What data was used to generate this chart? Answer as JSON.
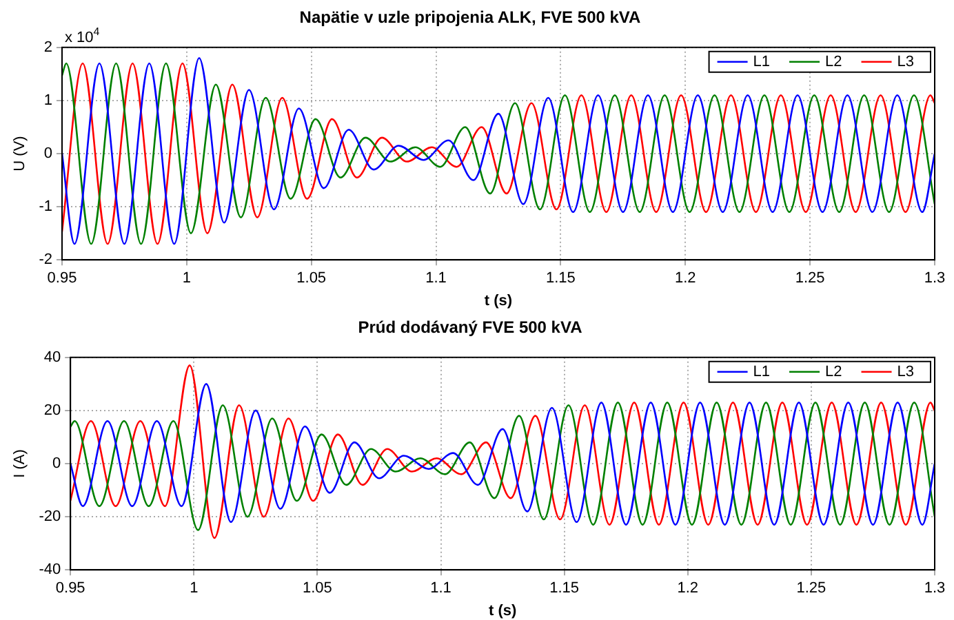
{
  "chart_data": [
    {
      "type": "line",
      "title": "Napätie v uzle pripojenia ALK, FVE 500 kVA",
      "xlabel": "t (s)",
      "ylabel": "U (V)",
      "annotations": [
        "x 10$^{4}$"
      ],
      "xlim": [
        0.95,
        1.3
      ],
      "xticks": [
        0.95,
        1,
        1.05,
        1.1,
        1.15,
        1.2,
        1.25,
        1.3
      ],
      "ylim": [
        -2,
        2
      ],
      "yticks": [
        -2,
        -1,
        0,
        1,
        2
      ],
      "grid": true,
      "legend": "top right",
      "marker": "none",
      "line_style": "solid",
      "series": [
        {
          "name": "L1",
          "color": "#0000ff",
          "x": [
            0.95,
            0.955,
            0.965,
            0.975,
            0.985,
            0.995,
            1.005,
            1.015,
            1.025,
            1.035,
            1.045,
            1.055,
            1.065,
            1.075,
            1.085,
            1.095,
            1.105,
            1.115,
            1.125,
            1.135,
            1.145,
            1.155,
            1.165,
            1.175,
            1.185,
            1.195,
            1.205,
            1.215,
            1.225,
            1.235,
            1.245,
            1.255,
            1.265,
            1.275,
            1.285,
            1.295,
            1.3
          ],
          "values": [
            0,
            -1.7,
            1.7,
            -1.7,
            1.7,
            -1.7,
            1.8,
            -1.3,
            1.2,
            -1.05,
            0.85,
            -0.65,
            0.45,
            -0.3,
            0.15,
            -0.12,
            0.25,
            -0.5,
            0.75,
            -0.95,
            1.05,
            -1.1,
            1.1,
            -1.1,
            1.1,
            -1.1,
            1.1,
            -1.1,
            1.1,
            -1.1,
            1.1,
            -1.1,
            1.1,
            -1.1,
            1.1,
            -1.1,
            0
          ]
        },
        {
          "name": "L2",
          "color": "#008000",
          "x": [
            0.95,
            0.9517,
            0.9617,
            0.9717,
            0.9817,
            0.9917,
            1.0017,
            1.0117,
            1.0217,
            1.0317,
            1.0417,
            1.0517,
            1.0617,
            1.0717,
            1.0817,
            1.0917,
            1.1017,
            1.1117,
            1.1217,
            1.1317,
            1.1417,
            1.1517,
            1.1617,
            1.1717,
            1.1817,
            1.1917,
            1.2017,
            1.2117,
            1.2217,
            1.2317,
            1.2417,
            1.2517,
            1.2617,
            1.2717,
            1.2817,
            1.2917,
            1.3
          ],
          "values": [
            1.47,
            1.7,
            -1.7,
            1.7,
            -1.7,
            1.7,
            -1.5,
            1.3,
            -1.2,
            1.05,
            -0.85,
            0.65,
            -0.45,
            0.3,
            -0.15,
            0.12,
            -0.25,
            0.5,
            -0.75,
            0.95,
            -1.05,
            1.1,
            -1.1,
            1.1,
            -1.1,
            1.1,
            -1.1,
            1.1,
            -1.1,
            1.1,
            -1.1,
            1.1,
            -1.1,
            1.1,
            -1.1,
            1.1,
            -0.95
          ]
        },
        {
          "name": "L3",
          "color": "#ff0000",
          "x": [
            0.95,
            0.9583,
            0.9683,
            0.9783,
            0.9883,
            0.9983,
            1.0083,
            1.0183,
            1.0283,
            1.0383,
            1.0483,
            1.0583,
            1.0683,
            1.0783,
            1.0883,
            1.0983,
            1.1083,
            1.1183,
            1.1283,
            1.1383,
            1.1483,
            1.1583,
            1.1683,
            1.1783,
            1.1883,
            1.1983,
            1.2083,
            1.2183,
            1.2283,
            1.2383,
            1.2483,
            1.2583,
            1.2683,
            1.2783,
            1.2883,
            1.2983,
            1.3
          ],
          "values": [
            -1.47,
            1.7,
            -1.7,
            1.7,
            -1.7,
            1.7,
            -1.5,
            1.3,
            -1.2,
            1.05,
            -0.85,
            0.65,
            -0.45,
            0.3,
            -0.15,
            0.12,
            -0.25,
            0.5,
            -0.75,
            0.95,
            -1.05,
            1.1,
            -1.1,
            1.1,
            -1.1,
            1.1,
            -1.1,
            1.1,
            -1.1,
            1.1,
            -1.1,
            1.1,
            -1.1,
            1.1,
            -1.1,
            1.1,
            0.95
          ]
        }
      ]
    },
    {
      "type": "line",
      "title": "Prúd dodávaný FVE 500 kVA",
      "xlabel": "t (s)",
      "ylabel": "I (A)",
      "xlim": [
        0.95,
        1.3
      ],
      "xticks": [
        0.95,
        1,
        1.05,
        1.1,
        1.15,
        1.2,
        1.25,
        1.3
      ],
      "ylim": [
        -40,
        40
      ],
      "yticks": [
        -40,
        -20,
        0,
        20,
        40
      ],
      "grid": true,
      "legend": "top right",
      "marker": "none",
      "line_style": "solid",
      "series": [
        {
          "name": "L1",
          "color": "#0000ff",
          "x": [
            0.95,
            0.955,
            0.965,
            0.975,
            0.985,
            0.995,
            1.005,
            1.015,
            1.025,
            1.035,
            1.045,
            1.055,
            1.065,
            1.075,
            1.085,
            1.095,
            1.105,
            1.115,
            1.125,
            1.135,
            1.145,
            1.155,
            1.165,
            1.175,
            1.185,
            1.195,
            1.205,
            1.215,
            1.225,
            1.235,
            1.245,
            1.255,
            1.265,
            1.275,
            1.285,
            1.295,
            1.3
          ],
          "values": [
            0,
            -16,
            16,
            -16,
            16,
            -16,
            30,
            -22,
            20,
            -17,
            14,
            -11,
            8,
            -5.5,
            3,
            -2,
            4,
            -8,
            13,
            -18,
            21,
            -22,
            23,
            -23,
            23,
            -23,
            23,
            -23,
            23,
            -23,
            23,
            -23,
            23,
            -23,
            23,
            -23,
            0
          ]
        },
        {
          "name": "L2",
          "color": "#008000",
          "x": [
            0.95,
            0.9517,
            0.9617,
            0.9717,
            0.9817,
            0.9917,
            1.0017,
            1.0117,
            1.0217,
            1.0317,
            1.0417,
            1.0517,
            1.0617,
            1.0717,
            1.0817,
            1.0917,
            1.1017,
            1.1117,
            1.1217,
            1.1317,
            1.1417,
            1.1517,
            1.1617,
            1.1717,
            1.1817,
            1.1917,
            1.2017,
            1.2117,
            1.2217,
            1.2317,
            1.2417,
            1.2517,
            1.2617,
            1.2717,
            1.2817,
            1.2917,
            1.3
          ],
          "values": [
            13.9,
            16,
            -16,
            16,
            -16,
            16,
            -25,
            22,
            -20,
            17,
            -14,
            11,
            -8,
            5.5,
            -3,
            2,
            -4,
            8,
            -13,
            18,
            -21,
            22,
            -23,
            23,
            -23,
            23,
            -23,
            23,
            -23,
            23,
            -23,
            23,
            -23,
            23,
            -23,
            23,
            -19.9
          ]
        },
        {
          "name": "L3",
          "color": "#ff0000",
          "x": [
            0.95,
            0.9583,
            0.9683,
            0.9783,
            0.9883,
            0.9983,
            1.0083,
            1.0183,
            1.0283,
            1.0383,
            1.0483,
            1.0583,
            1.0683,
            1.0783,
            1.0883,
            1.0983,
            1.1083,
            1.1183,
            1.1283,
            1.1383,
            1.1483,
            1.1583,
            1.1683,
            1.1783,
            1.1883,
            1.1983,
            1.2083,
            1.2183,
            1.2283,
            1.2383,
            1.2483,
            1.2583,
            1.2683,
            1.2783,
            1.2883,
            1.2983,
            1.3
          ],
          "values": [
            -13.9,
            16,
            -16,
            16,
            -16,
            37,
            -28,
            22,
            -20,
            17,
            -14,
            11,
            -8,
            5.5,
            -3,
            2,
            -4,
            8,
            -13,
            18,
            -21,
            22,
            -23,
            23,
            -23,
            23,
            -23,
            23,
            -23,
            23,
            -23,
            23,
            -23,
            23,
            -23,
            23,
            19.9
          ]
        }
      ]
    }
  ]
}
